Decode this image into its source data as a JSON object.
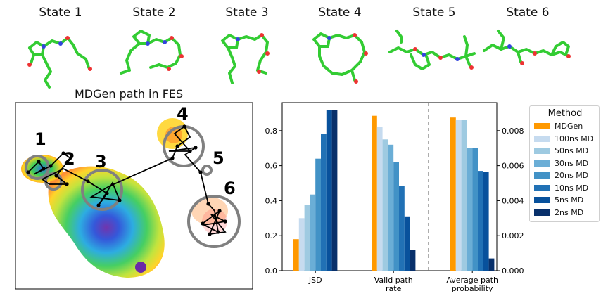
{
  "states": [
    "State 1",
    "State 2",
    "State 3",
    "State 4",
    "State 5",
    "State 6"
  ],
  "fes": {
    "title": "MDGen path in FES",
    "state_markers": [
      "1",
      "2",
      "3",
      "4",
      "5",
      "6"
    ]
  },
  "chart_data": {
    "type": "bar",
    "categories": [
      "JSD",
      "Valid path\nrate",
      "Average path\nprobability"
    ],
    "legend_title": "Method",
    "series": [
      {
        "name": "MDGen",
        "color": "#ff9900",
        "values": [
          0.18,
          0.885,
          0.00875
        ]
      },
      {
        "name": "100ns MD",
        "color": "#c6dbef",
        "values": [
          0.3,
          0.82,
          0.0086
        ]
      },
      {
        "name": "50ns MD",
        "color": "#9ecae1",
        "values": [
          0.375,
          0.75,
          0.0086
        ]
      },
      {
        "name": "30ns MD",
        "color": "#6baed6",
        "values": [
          0.435,
          0.72,
          0.007
        ]
      },
      {
        "name": "20ns MD",
        "color": "#4292c6",
        "values": [
          0.64,
          0.62,
          0.007
        ]
      },
      {
        "name": "10ns MD",
        "color": "#2171b5",
        "values": [
          0.78,
          0.485,
          0.0057
        ]
      },
      {
        "name": "5ns MD",
        "color": "#08519c",
        "values": [
          0.92,
          0.31,
          0.00565
        ]
      },
      {
        "name": "2ns MD",
        "color": "#08306b",
        "values": [
          0.92,
          0.12,
          0.0007
        ]
      }
    ],
    "left_axis": {
      "ylim": [
        0,
        0.96
      ],
      "ticks": [
        "0.0",
        "0.2",
        "0.4",
        "0.6",
        "0.8"
      ]
    },
    "right_axis": {
      "ylim": [
        0,
        0.0096
      ],
      "ticks": [
        "0.000",
        "0.002",
        "0.004",
        "0.006",
        "0.008"
      ]
    },
    "divider": "dashed line between Valid path rate and Average path probability"
  }
}
